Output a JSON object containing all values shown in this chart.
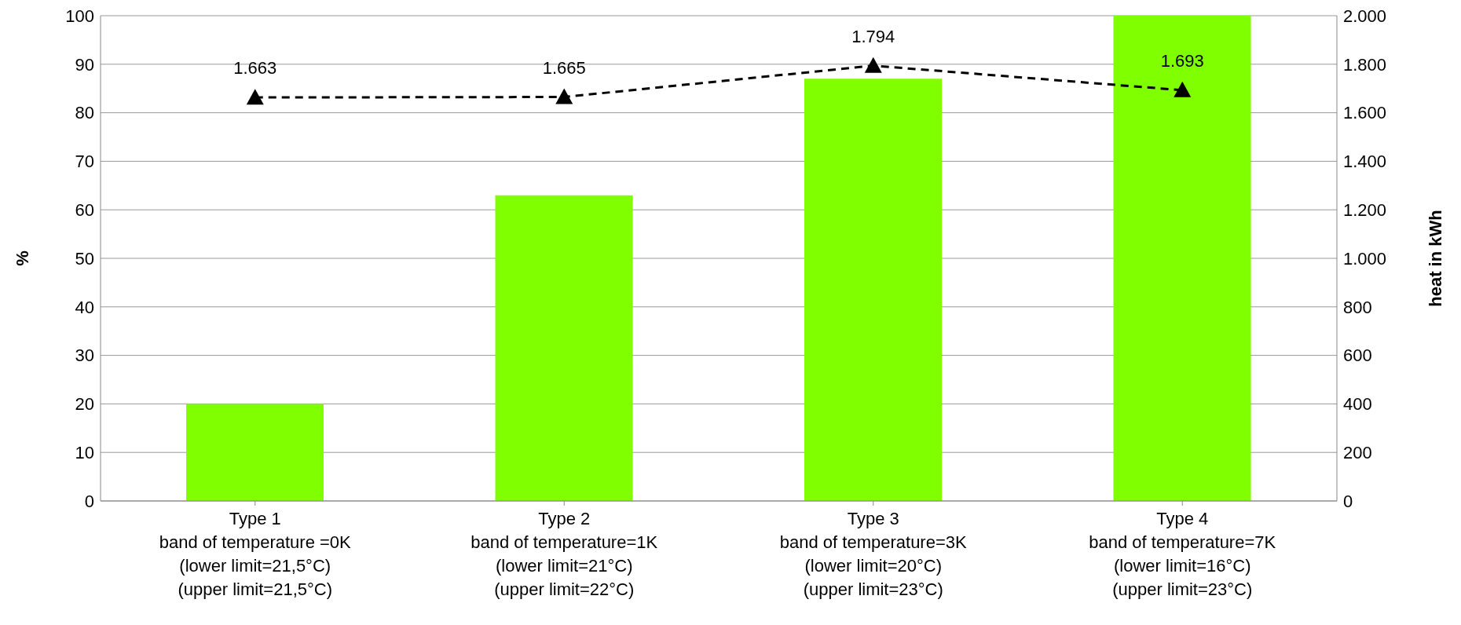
{
  "chart_data": {
    "type": "bar",
    "ylabel": "%",
    "y2label": "heat in kWh",
    "categories": [
      "Type 1\nband of temperature =0K\n(lower limit=21,5°C)\n(upper limit=21,5°C)",
      "Type 2\nband of temperature=1K\n(lower limit=21°C)\n(upper limit=22°C)",
      "Type 3\nband of temperature=3K\n(lower limit=20°C)\n(upper limit=23°C)",
      "Type 4\nband of temperature=7K\n(lower limit=16°C)\n(upper limit=23°C)"
    ],
    "series": [
      {
        "color": "#80ff00",
        "values": [
          20,
          63,
          87,
          100
        ]
      },
      {
        "type": "line",
        "axis": "y2",
        "color": "#000000",
        "values": [
          1663,
          1665,
          1794,
          1693
        ],
        "value_labels": [
          "1.663",
          "1.665",
          "1.794",
          "1.693"
        ],
        "marker": "triangle",
        "line_style": "dashed"
      }
    ],
    "ylim": [
      0,
      100
    ],
    "yticks": [
      0,
      10,
      20,
      30,
      40,
      50,
      60,
      70,
      80,
      90,
      100
    ],
    "y2lim": [
      0,
      2000
    ],
    "y2ticks": [
      {
        "value": 0,
        "label": "0"
      },
      {
        "value": 200,
        "label": "200"
      },
      {
        "value": 400,
        "label": "400"
      },
      {
        "value": 600,
        "label": "600"
      },
      {
        "value": 800,
        "label": "800"
      },
      {
        "value": 1000,
        "label": "1.000"
      },
      {
        "value": 1200,
        "label": "1.200"
      },
      {
        "value": 1400,
        "label": "1.400"
      },
      {
        "value": 1600,
        "label": "1.600"
      },
      {
        "value": 1800,
        "label": "1.800"
      },
      {
        "value": 2000,
        "label": "2.000"
      }
    ],
    "grid": "y",
    "legend": false
  }
}
